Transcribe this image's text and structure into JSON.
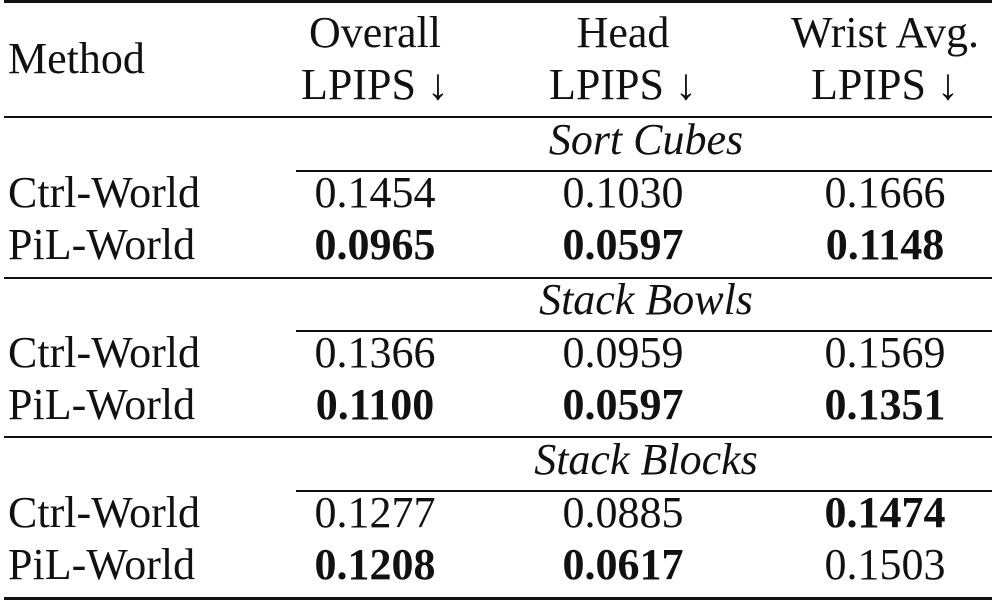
{
  "header": {
    "method": "Method",
    "overall_l1": "Overall",
    "overall_l2": "LPIPS ↓",
    "head_l1": "Head",
    "head_l2": "LPIPS ↓",
    "wrist_l1": "Wrist Avg.",
    "wrist_l2": "LPIPS ↓"
  },
  "sections": [
    {
      "title": "Sort Cubes",
      "rows": [
        {
          "method": "Ctrl-World",
          "overall": "0.1454",
          "head": "0.1030",
          "wrist": "0.1666"
        },
        {
          "method": "PiL-World",
          "overall": "0.0965",
          "head": "0.0597",
          "wrist": "0.1148"
        }
      ]
    },
    {
      "title": "Stack Bowls",
      "rows": [
        {
          "method": "Ctrl-World",
          "overall": "0.1366",
          "head": "0.0959",
          "wrist": "0.1569"
        },
        {
          "method": "PiL-World",
          "overall": "0.1100",
          "head": "0.0597",
          "wrist": "0.1351"
        }
      ]
    },
    {
      "title": "Stack Blocks",
      "rows": [
        {
          "method": "Ctrl-World",
          "overall": "0.1277",
          "head": "0.0885",
          "wrist": "0.1474"
        },
        {
          "method": "PiL-World",
          "overall": "0.1208",
          "head": "0.0617",
          "wrist": "0.1503"
        }
      ]
    }
  ]
}
